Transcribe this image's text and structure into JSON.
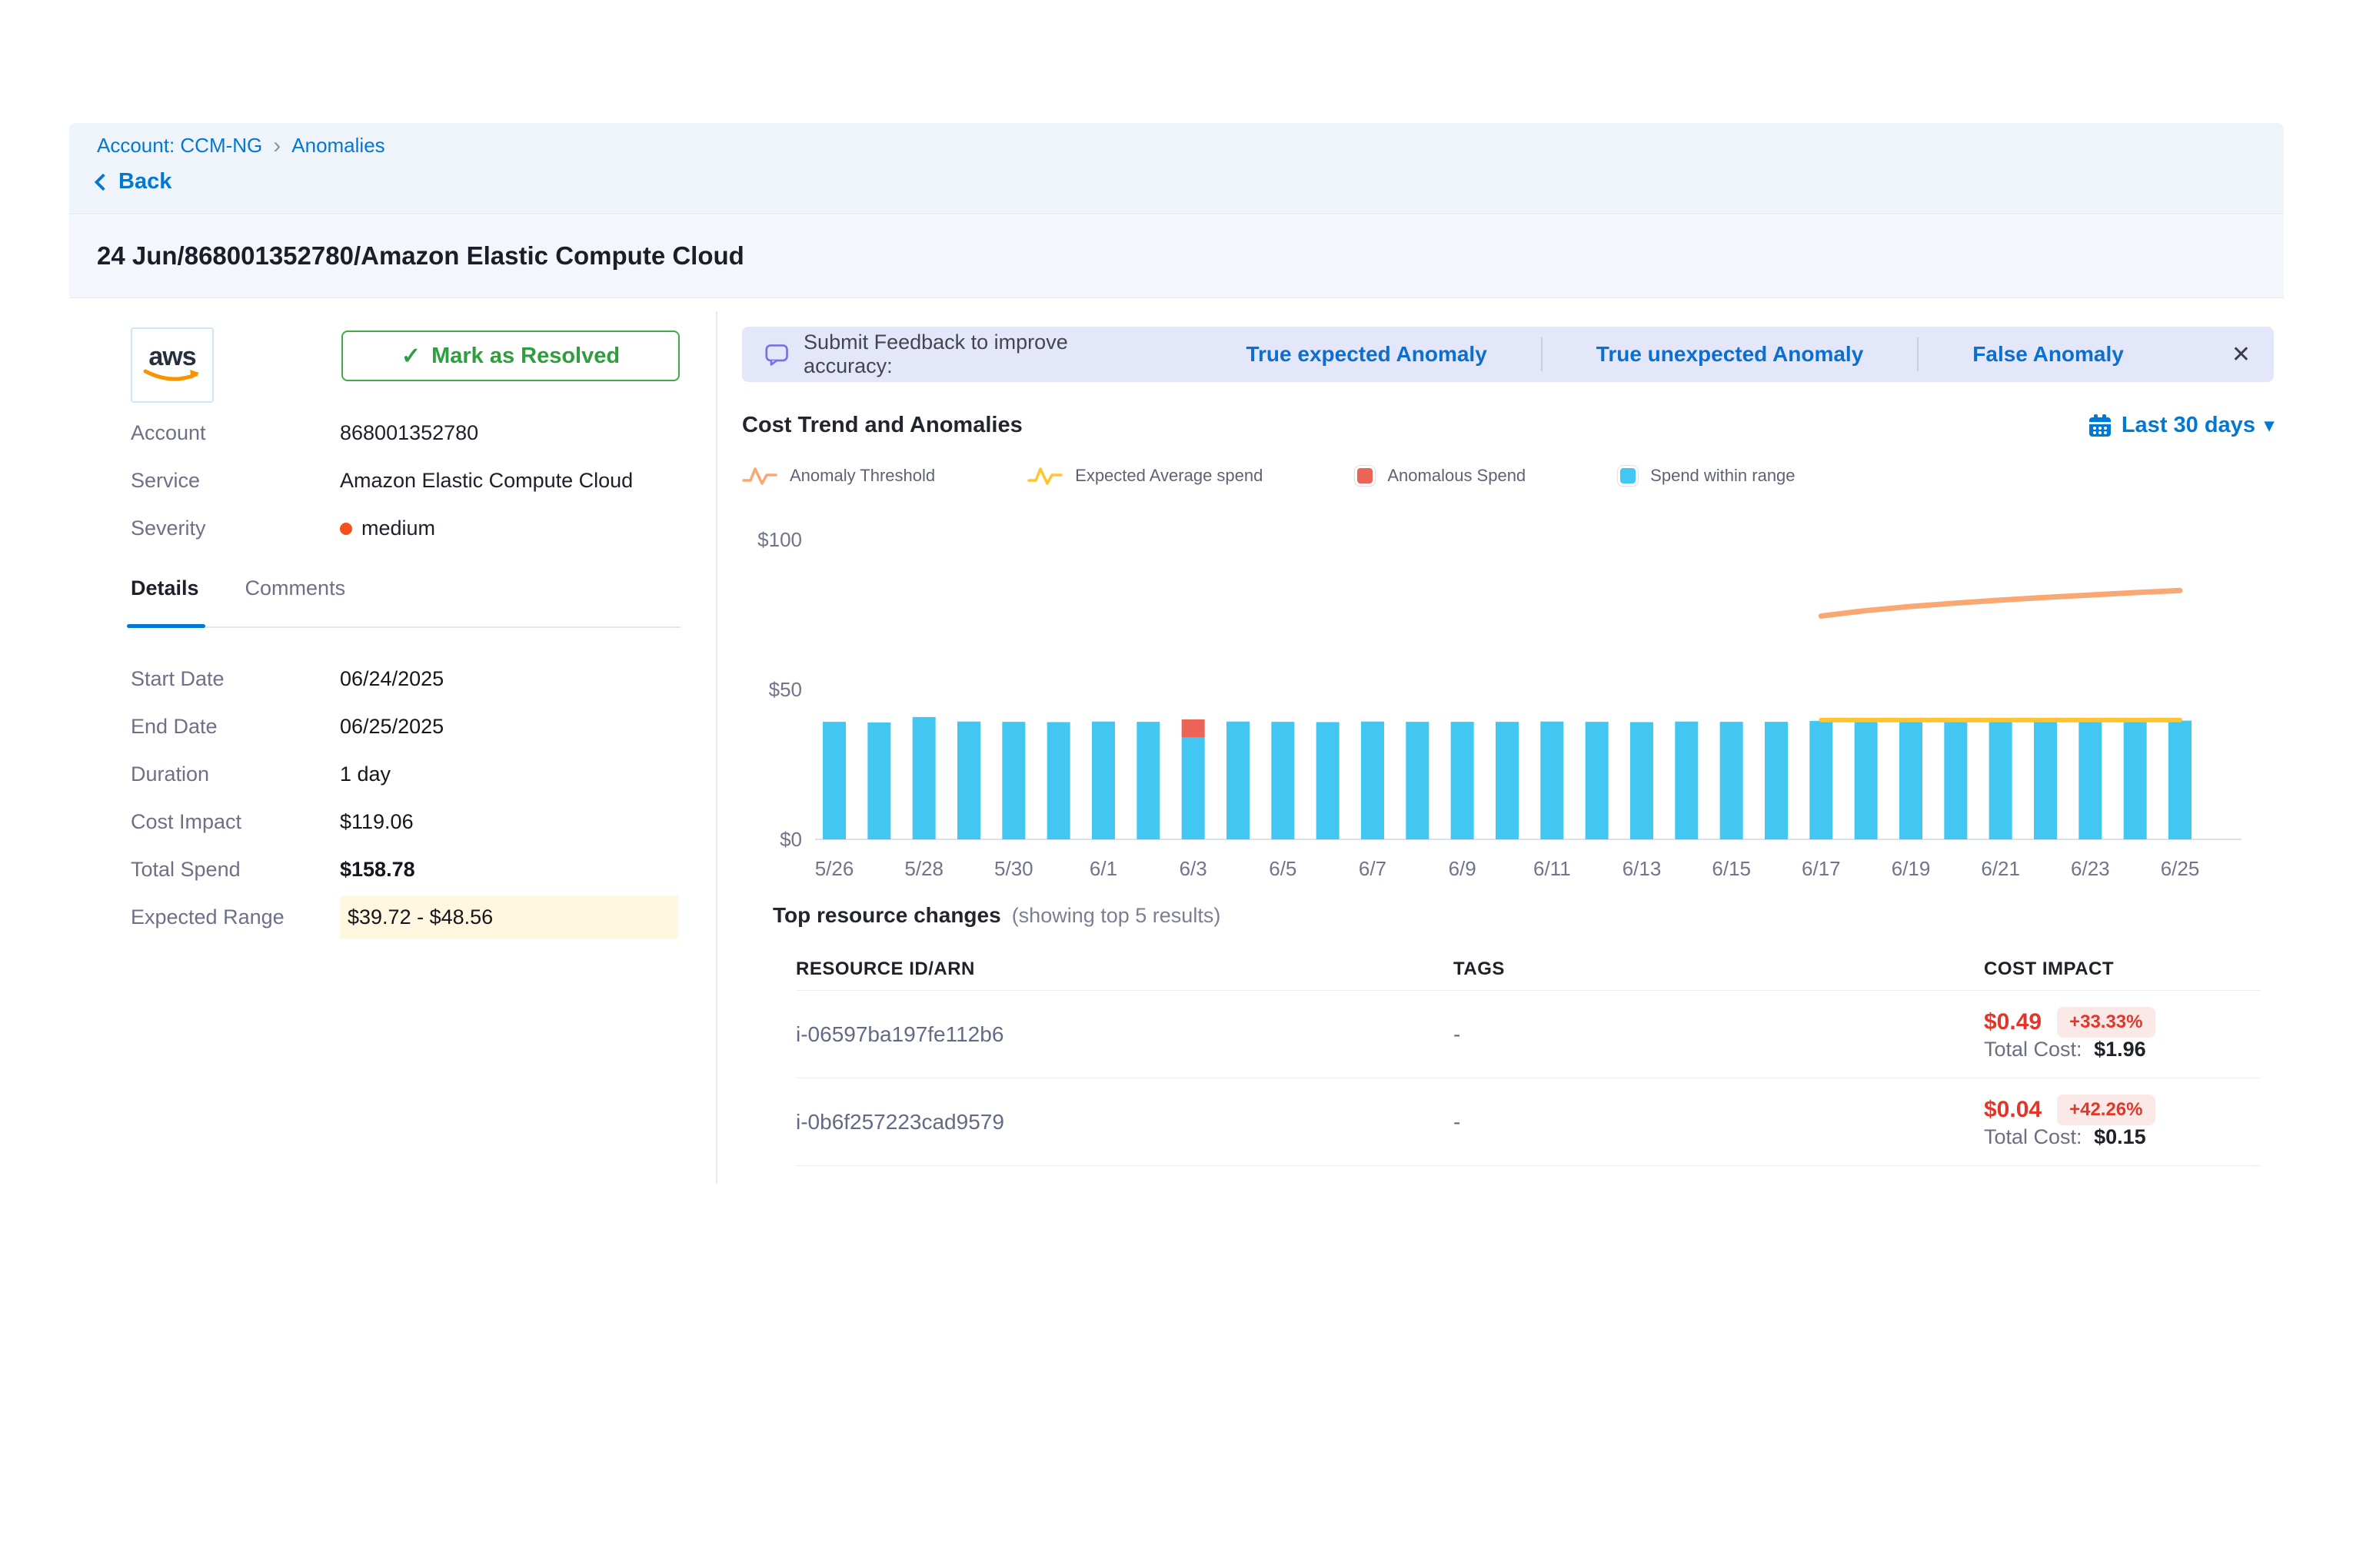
{
  "breadcrumb": {
    "account": "Account: CCM-NG",
    "current": "Anomalies"
  },
  "back_label": "Back",
  "page_title": "24 Jun/868001352780/Amazon Elastic Compute Cloud",
  "icons": {
    "crumb_sep": "›",
    "check": "✓",
    "caret_down": "▾",
    "close": "✕",
    "aws_word": "aws"
  },
  "summary": {
    "resolve_button": "Mark as Resolved",
    "fields": [
      {
        "label": "Account",
        "value": "868001352780"
      },
      {
        "label": "Service",
        "value": "Amazon Elastic Compute Cloud"
      },
      {
        "label": "Severity",
        "value": "medium"
      }
    ]
  },
  "tabs": [
    {
      "label": "Details"
    },
    {
      "label": "Comments"
    }
  ],
  "details": {
    "rows": [
      {
        "label": "Start Date",
        "value": "06/24/2025"
      },
      {
        "label": "End Date",
        "value": "06/25/2025"
      },
      {
        "label": "Duration",
        "value": "1 day"
      },
      {
        "label": "Cost Impact",
        "value": "$119.06"
      },
      {
        "label": "Total Spend",
        "value": "$158.78"
      },
      {
        "label": "Expected Range",
        "value": "$39.72 - $48.56"
      }
    ]
  },
  "feedback": {
    "prompt": "Submit Feedback to improve accuracy:",
    "options": [
      "True expected Anomaly",
      "True unexpected Anomaly",
      "False Anomaly"
    ]
  },
  "chart_header": {
    "title": "Cost Trend and Anomalies",
    "range_label": "Last 30 days"
  },
  "legend": [
    {
      "label": "Anomaly Threshold",
      "type": "line",
      "color": "#f9a773"
    },
    {
      "label": "Expected Average spend",
      "type": "line",
      "color": "#ffc42e"
    },
    {
      "label": "Anomalous Spend",
      "type": "square",
      "color": "#eb6456"
    },
    {
      "label": "Spend within range",
      "type": "square",
      "color": "#42c6f2"
    }
  ],
  "colors": {
    "primary_blue": "#0278d5",
    "green": "#42ab45",
    "severity_orange": "#f4511e",
    "red": "#e3362a",
    "bar_blue": "#42c6f2",
    "bar_red": "#eb6456",
    "line_yellow": "#ffc42e",
    "line_orange": "#f9a773",
    "feedback_bg": "#e4e7f9",
    "highlight_bg": "#fff7df"
  },
  "chart_data": {
    "type": "bar",
    "title": "Cost Trend and Anomalies",
    "xlabel": "",
    "ylabel": "",
    "ylim": [
      0,
      100
    ],
    "grid": false,
    "legend_position": "top",
    "yticks": [
      {
        "value": 0,
        "label": "$0"
      },
      {
        "value": 50,
        "label": "$50"
      },
      {
        "value": 100,
        "label": "$100"
      }
    ],
    "x": [
      "5/26",
      "5/27",
      "5/28",
      "5/29",
      "5/30",
      "5/31",
      "6/1",
      "6/2",
      "6/3",
      "6/4",
      "6/5",
      "6/6",
      "6/7",
      "6/8",
      "6/9",
      "6/10",
      "6/11",
      "6/12",
      "6/13",
      "6/14",
      "6/15",
      "6/16",
      "6/17",
      "6/18",
      "6/19",
      "6/20",
      "6/21",
      "6/22",
      "6/23",
      "6/24",
      "6/25"
    ],
    "x_tick_every": 2,
    "bar_series": [
      {
        "name": "Spend within range",
        "color": "#42c6f2",
        "values": [
          39.2,
          39.0,
          40.8,
          39.3,
          39.2,
          39.1,
          39.3,
          39.2,
          34.0,
          39.3,
          39.2,
          39.1,
          39.3,
          39.2,
          39.2,
          39.2,
          39.3,
          39.2,
          39.1,
          39.3,
          39.2,
          39.2,
          39.5,
          39.6,
          39.5,
          39.5,
          39.6,
          39.5,
          39.5,
          39.6,
          39.6
        ]
      },
      {
        "name": "Anomalous Spend",
        "color": "#eb6456",
        "values": [
          0,
          0,
          0,
          0,
          0,
          0,
          0,
          0,
          6.0,
          0,
          0,
          0,
          0,
          0,
          0,
          0,
          0,
          0,
          0,
          0,
          0,
          0,
          0,
          0,
          0,
          0,
          0,
          0,
          0,
          0,
          0
        ]
      }
    ],
    "line_series": [
      {
        "name": "Expected Average spend",
        "color": "#ffc42e",
        "width": 6,
        "start": "6/17",
        "values": [
          39.8,
          39.8,
          39.8,
          39.8,
          39.8,
          39.8,
          39.8,
          39.8,
          39.8
        ]
      },
      {
        "name": "Anomaly Threshold",
        "color": "#f9a773",
        "width": 7,
        "start": "6/17",
        "values": [
          74.5,
          76.3,
          77.7,
          78.8,
          79.8,
          80.7,
          81.5,
          82.3,
          83.0
        ]
      }
    ]
  },
  "resources": {
    "title": "Top resource changes",
    "subtitle": "(showing top 5 results)",
    "columns": [
      "RESOURCE ID/ARN",
      "TAGS",
      "COST IMPACT"
    ],
    "rows": [
      {
        "resource_id": "i-06597ba197fe112b6",
        "tags": "-",
        "cost_impact": "$0.49",
        "change_pct": "+33.33%",
        "total_cost_label": "Total Cost:",
        "total_cost": "$1.96"
      },
      {
        "resource_id": "i-0b6f257223cad9579",
        "tags": "-",
        "cost_impact": "$0.04",
        "change_pct": "+42.26%",
        "total_cost_label": "Total Cost:",
        "total_cost": "$0.15"
      }
    ]
  }
}
